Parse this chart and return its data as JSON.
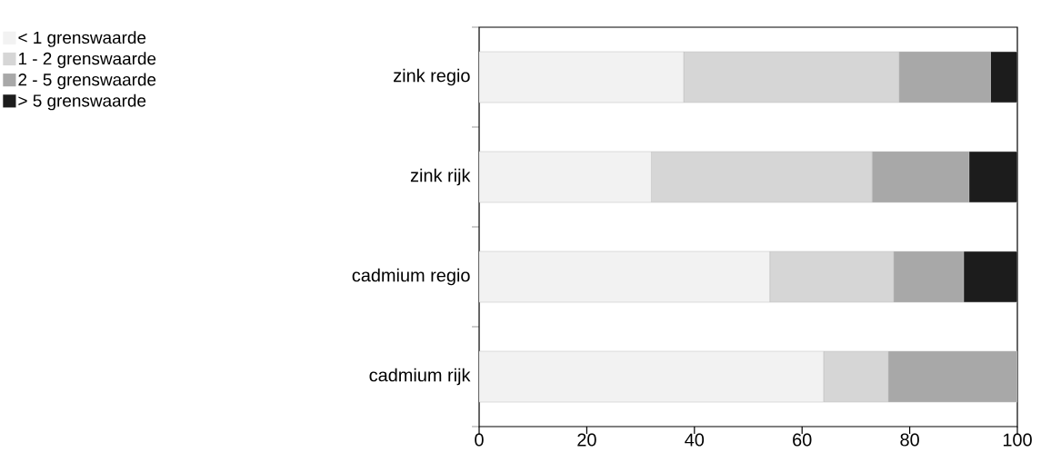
{
  "chart_data": {
    "type": "bar",
    "orientation": "horizontal",
    "stacked": true,
    "categories": [
      "zink regio",
      "zink rijk",
      "cadmium regio",
      "cadmium rijk"
    ],
    "series": [
      {
        "name": "< 1 grenswaarde",
        "color": "#f2f2f2",
        "values": [
          38,
          32,
          54,
          64
        ]
      },
      {
        "name": "1 - 2 grenswaarde",
        "color": "#d6d6d6",
        "values": [
          40,
          41,
          23,
          12
        ]
      },
      {
        "name": "2 - 5 grenswaarde",
        "color": "#a8a8a8",
        "values": [
          17,
          18,
          13,
          24
        ]
      },
      {
        "name": "> 5 grenswaarde",
        "color": "#1c1c1c",
        "values": [
          5,
          9,
          10,
          0
        ]
      }
    ],
    "xlim": [
      0,
      100
    ],
    "xticks": [
      0,
      20,
      40,
      60,
      80,
      100
    ],
    "grid": false,
    "legend": "top left"
  }
}
